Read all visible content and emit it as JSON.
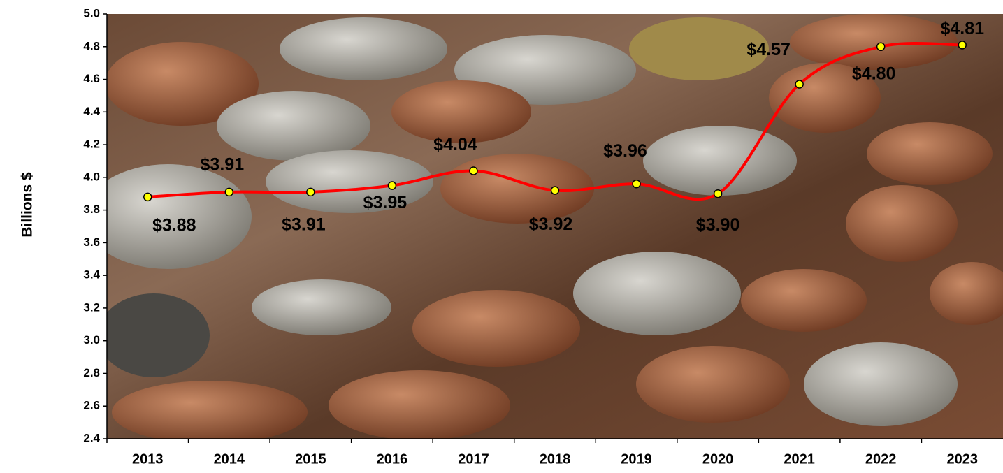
{
  "chart_data": {
    "type": "line",
    "y_label": "Billions $",
    "categories": [
      "2013",
      "2014",
      "2015",
      "2016",
      "2017",
      "2018",
      "2019",
      "2020",
      "2021",
      "2022",
      "2023"
    ],
    "series": [
      {
        "name": "Billions $",
        "color": "#ff0000",
        "marker_color": "#ffff00",
        "values": [
          3.88,
          3.91,
          3.91,
          3.95,
          4.04,
          3.92,
          3.96,
          3.9,
          4.57,
          4.8,
          4.81
        ],
        "value_labels": [
          "$3.88",
          "$3.91",
          "$3.91",
          "$3.95",
          "$4.04",
          "$3.92",
          "$3.96",
          "$3.90",
          "$4.57",
          "$4.80",
          "$4.81"
        ]
      }
    ],
    "ylim": [
      2.4,
      5.0
    ],
    "yticks": [
      2.4,
      2.6,
      2.8,
      {
        "value": 3,
        "label": "3.0"
      },
      3.2,
      3.4,
      3.6,
      3.8,
      {
        "value": 4,
        "label": "4.0"
      },
      4.2,
      4.4,
      4.6,
      4.8,
      {
        "value": 5,
        "label": "5.0"
      }
    ],
    "grid": false
  }
}
